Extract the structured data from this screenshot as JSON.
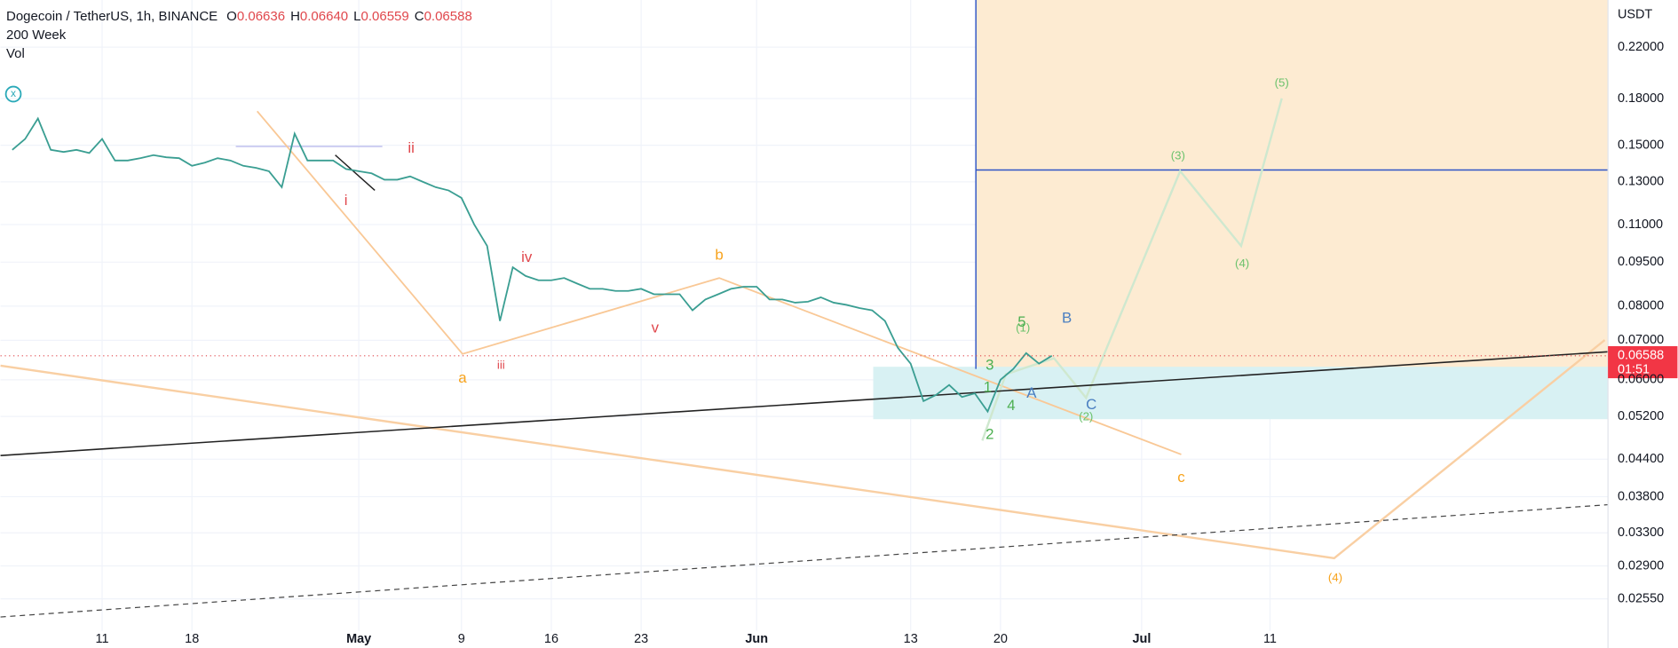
{
  "header": {
    "symbol": "Dogecoin / TetherUS, 1h, BINANCE",
    "ohlc": [
      [
        "O",
        "0.06636"
      ],
      [
        "H",
        "0.06640"
      ],
      [
        "L",
        "0.06559"
      ],
      [
        "C",
        "0.06588"
      ]
    ],
    "indicators": [
      "200 Week",
      "Vol"
    ]
  },
  "price_axis_unit": "USDT",
  "last_price_tag": {
    "price": "0.06588",
    "countdown": "01:51"
  },
  "chart_data": {
    "type": "line",
    "log_scale": true,
    "grid": true,
    "categories": [
      null,
      null,
      null,
      null,
      null,
      null,
      null,
      "11",
      null,
      null,
      null,
      null,
      null,
      null,
      "18",
      null,
      null,
      null,
      null,
      null,
      null,
      null,
      null,
      null,
      null,
      null,
      null,
      "May",
      null,
      null,
      null,
      null,
      null,
      null,
      null,
      "9",
      null,
      null,
      null,
      null,
      null,
      null,
      "16",
      null,
      null,
      null,
      null,
      null,
      null,
      "23",
      null,
      null,
      null,
      null,
      null,
      null,
      null,
      null,
      "Jun",
      null,
      null,
      null,
      null,
      null,
      null,
      null,
      null,
      null,
      null,
      null,
      "13",
      null,
      null,
      null,
      null,
      null,
      null,
      "20",
      null,
      null,
      null,
      null,
      null,
      null,
      null,
      null,
      null,
      null,
      "Jul",
      null,
      null,
      null,
      null,
      null,
      null,
      null,
      null,
      null,
      "11",
      null,
      null,
      null,
      null,
      null,
      null,
      null,
      null,
      null,
      null,
      null,
      null,
      null,
      null,
      null,
      null,
      null,
      null,
      null,
      null,
      null,
      null,
      null,
      null,
      null,
      null
    ],
    "series": [
      {
        "name": "Dogecoin / TetherUS, 1h, BINANCE",
        "color": "#3a9e92",
        "values": [
          0.1473,
          0.1537,
          0.1665,
          0.1473,
          0.1461,
          0.1473,
          0.1455,
          0.1537,
          0.1413,
          0.1413,
          0.1426,
          0.1443,
          0.1431,
          0.1426,
          0.1384,
          0.1401,
          0.1426,
          0.1413,
          0.1384,
          0.1373,
          0.1355,
          0.1273,
          0.1569,
          0.1413,
          0.1413,
          0.1413,
          0.1367,
          0.1355,
          0.1344,
          0.1311,
          0.1311,
          0.1328,
          0.13,
          0.1273,
          0.1257,
          0.1221,
          0.11,
          0.1012,
          0.0755,
          0.0931,
          0.09,
          0.0885,
          0.0885,
          0.0893,
          0.0874,
          0.0856,
          0.0856,
          0.0849,
          0.0849,
          0.0856,
          0.0838,
          0.0838,
          0.0838,
          0.0787,
          0.0821,
          0.0838,
          0.0856,
          0.0863,
          0.0863,
          0.0821,
          0.0821,
          0.0811,
          0.0814,
          0.0828,
          0.0811,
          0.0804,
          0.0794,
          0.0787,
          0.0755,
          0.068,
          0.0639,
          0.0552,
          0.0566,
          0.0588,
          0.0561,
          0.0569,
          0.053,
          0.06,
          0.0626,
          0.0666,
          0.0639,
          0.0659,
          null,
          null,
          null,
          null,
          null,
          null,
          null,
          null,
          null,
          null,
          null,
          null,
          null,
          null,
          null,
          null,
          null,
          null,
          null,
          null,
          null,
          null,
          null,
          null,
          null,
          null,
          null,
          null,
          null,
          null,
          null,
          null,
          null,
          null,
          null,
          null,
          null,
          null,
          null,
          null,
          null,
          null,
          null
        ]
      }
    ],
    "ylim": [
      0.0225,
      0.2645
    ],
    "yticks": [
      {
        "value": 0.22,
        "label": "0.22000"
      },
      {
        "value": 0.18,
        "label": "0.18000"
      },
      {
        "value": 0.15,
        "label": "0.15000"
      },
      {
        "value": 0.13,
        "label": "0.13000"
      },
      {
        "value": 0.11,
        "label": "0.11000"
      },
      {
        "value": 0.095,
        "label": "0.09500"
      },
      {
        "value": 0.08,
        "label": "0.08000"
      },
      {
        "value": 0.07,
        "label": "0.07000"
      },
      {
        "value": 0.06,
        "label": "0.06000"
      },
      {
        "value": 0.052,
        "label": "0.05200"
      },
      {
        "value": 0.044,
        "label": "0.04400"
      },
      {
        "value": 0.038,
        "label": "0.03800"
      },
      {
        "value": 0.033,
        "label": "0.03300"
      },
      {
        "value": 0.029,
        "label": "0.02900"
      },
      {
        "value": 0.0255,
        "label": "0.02550"
      }
    ],
    "annotations": [
      {
        "text": "i",
        "color": "#e0474c"
      },
      {
        "text": "ii",
        "color": "#e0474c"
      },
      {
        "text": "iii",
        "color": "#e0474c"
      },
      {
        "text": "iv",
        "color": "#e0474c"
      },
      {
        "text": "v",
        "color": "#e0474c"
      },
      {
        "text": "a",
        "color": "#f7a21b"
      },
      {
        "text": "b",
        "color": "#f7a21b"
      },
      {
        "text": "c",
        "color": "#f7a21b"
      },
      {
        "text": "(4)",
        "color": "#f7a21b"
      },
      {
        "text": "(1)",
        "color": "#6cc26c"
      },
      {
        "text": "(2)",
        "color": "#6cc26c"
      },
      {
        "text": "(3)",
        "color": "#6cc26c"
      },
      {
        "text": "(4)",
        "color": "#6cc26c"
      },
      {
        "text": "(5)",
        "color": "#6cc26c"
      },
      {
        "text": "1",
        "color": "#4caf50"
      },
      {
        "text": "2",
        "color": "#4caf50"
      },
      {
        "text": "3",
        "color": "#4caf50"
      },
      {
        "text": "4",
        "color": "#4caf50"
      },
      {
        "text": "5",
        "color": "#4caf50"
      },
      {
        "text": "A",
        "color": "#4a7fc1"
      },
      {
        "text": "B",
        "color": "#4a7fc1"
      },
      {
        "text": "C",
        "color": "#4a7fc1"
      }
    ]
  }
}
